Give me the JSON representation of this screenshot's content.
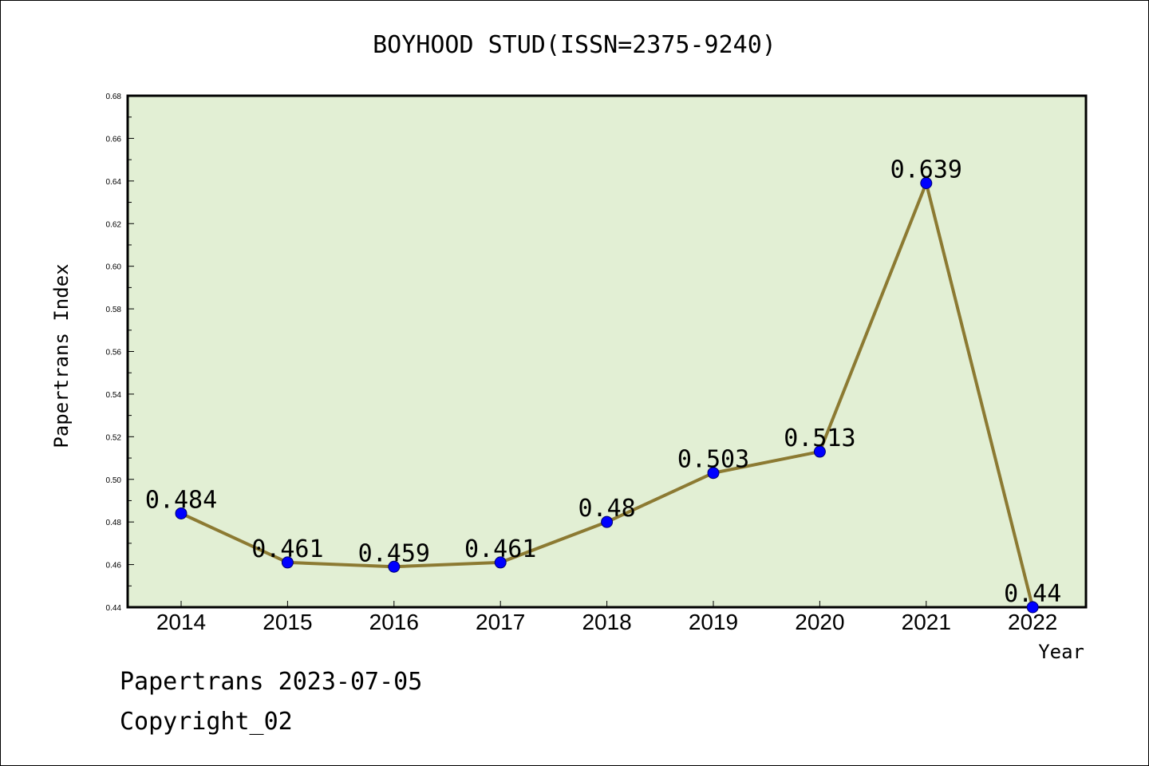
{
  "chart_data": {
    "type": "line",
    "title": "BOYHOOD STUD(ISSN=2375-9240)",
    "xlabel": "Year",
    "ylabel": "Papertrans Index",
    "categories": [
      "2014",
      "2015",
      "2016",
      "2017",
      "2018",
      "2019",
      "2020",
      "2021",
      "2022"
    ],
    "series": [
      {
        "values": [
          0.484,
          0.461,
          0.459,
          0.461,
          0.48,
          0.503,
          0.513,
          0.639,
          0.44
        ],
        "labels": [
          "0.484",
          "0.461",
          "0.459",
          "0.461",
          "0.48",
          "0.503",
          "0.513",
          "0.639",
          "0.44"
        ]
      }
    ],
    "ylim": [
      0.44,
      0.68
    ],
    "yticks": [
      "0.44",
      "0.46",
      "0.48",
      "0.50",
      "0.52",
      "0.54",
      "0.56",
      "0.58",
      "0.60",
      "0.62",
      "0.64",
      "0.66",
      "0.68"
    ],
    "grid": false,
    "legend": "none",
    "colors": {
      "plot_background": "#e2efd4",
      "line": "#8c7a32",
      "marker": "#0000ff"
    }
  },
  "footer": {
    "line1": "Papertrans 2023-07-05",
    "line2": "Copyright_02"
  }
}
